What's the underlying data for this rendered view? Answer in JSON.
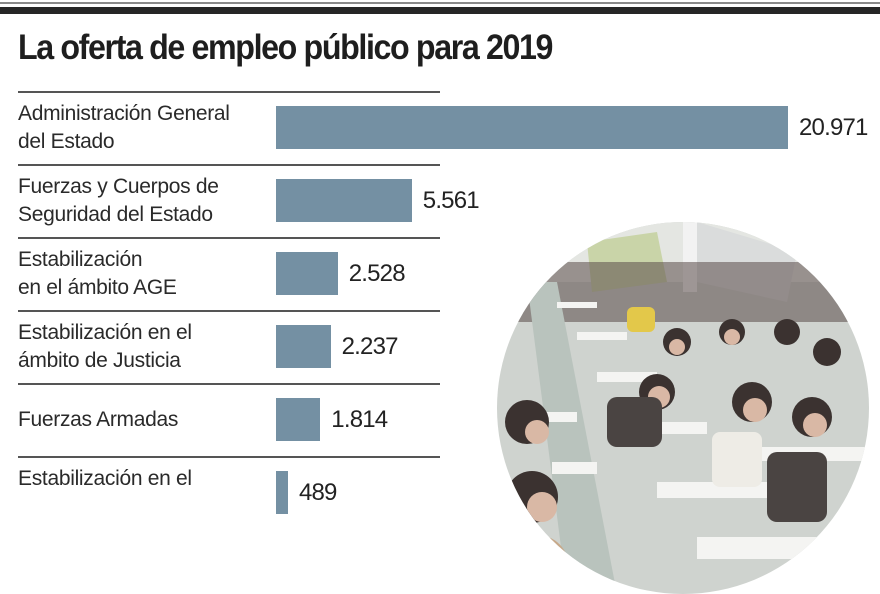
{
  "header": {
    "title": "La oferta de empleo público para 2019"
  },
  "chart_data": {
    "type": "bar",
    "orientation": "horizontal",
    "title": "La oferta de empleo público para 2019",
    "xlabel": "",
    "ylabel": "",
    "grid": false,
    "categories": [
      "Administración General\ndel Estado",
      "Fuerzas y Cuerpos de\nSeguridad del Estado",
      "Estabilización\nen el ámbito AGE",
      "Estabilización en el\námbito de Justicia",
      "Fuerzas Armadas",
      "Estabilización en el"
    ],
    "values": [
      20971,
      5561,
      2528,
      2237,
      1814,
      489
    ],
    "value_labels": [
      "20.971",
      "5.561",
      "2.528",
      "2.237",
      "1.814",
      "489"
    ],
    "xlim": [
      0,
      20971
    ]
  },
  "colors": {
    "bar": "#7490a3",
    "title": "#1e1e1e",
    "rule": "#262626"
  },
  "photo": {
    "icon": "exam-hall-photo-icon"
  }
}
